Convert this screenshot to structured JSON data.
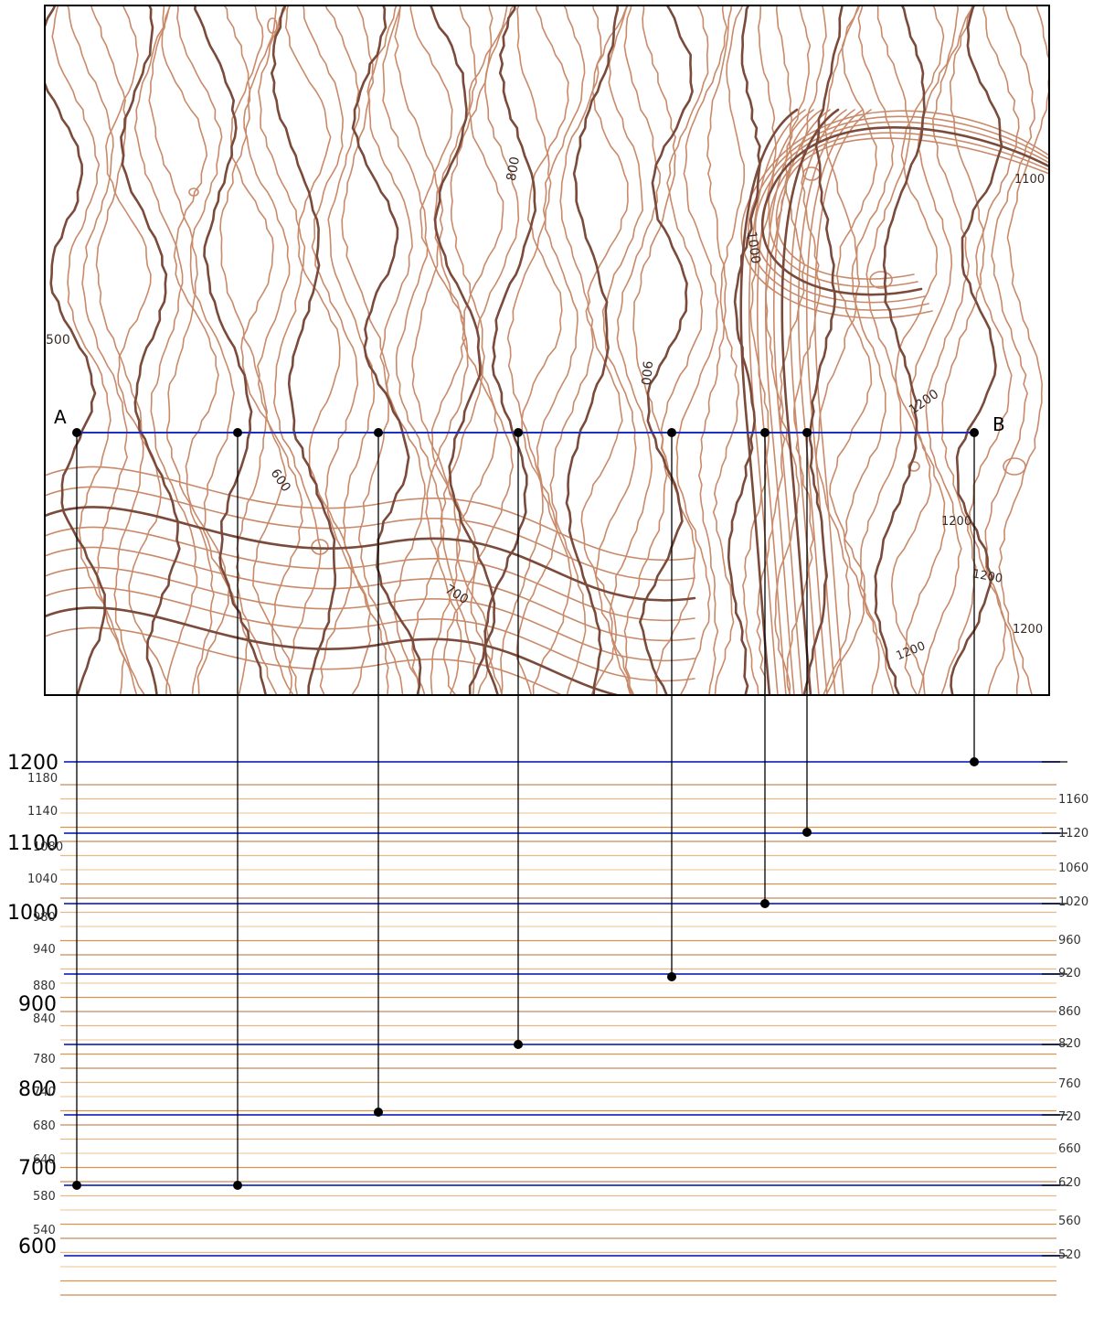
{
  "map": {
    "contour_labels": [
      "500",
      "600",
      "700",
      "800",
      "900",
      "1000",
      "1100",
      "1200",
      "1200",
      "1200",
      "1200",
      "1200"
    ],
    "point_a": "A",
    "point_b": "B"
  },
  "profile": {
    "major_levels": [
      "1200",
      "1100",
      "1000",
      "900",
      "800",
      "700",
      "600"
    ],
    "left_minor_labels": [
      "1180",
      "1140",
      "1080",
      "1040",
      "980",
      "940",
      "880",
      "840",
      "780",
      "740",
      "680",
      "640",
      "580",
      "540"
    ],
    "right_minor_labels": [
      "1160",
      "1120",
      "1060",
      "1020",
      "960",
      "920",
      "860",
      "820",
      "760",
      "720",
      "660",
      "620",
      "560",
      "520"
    ]
  },
  "colors": {
    "contour_index": "#7a4a3a",
    "contour": "#c98a6a",
    "section_line": "#1f2fbf",
    "minor_line": "#d9944f",
    "frame": "#000000"
  }
}
